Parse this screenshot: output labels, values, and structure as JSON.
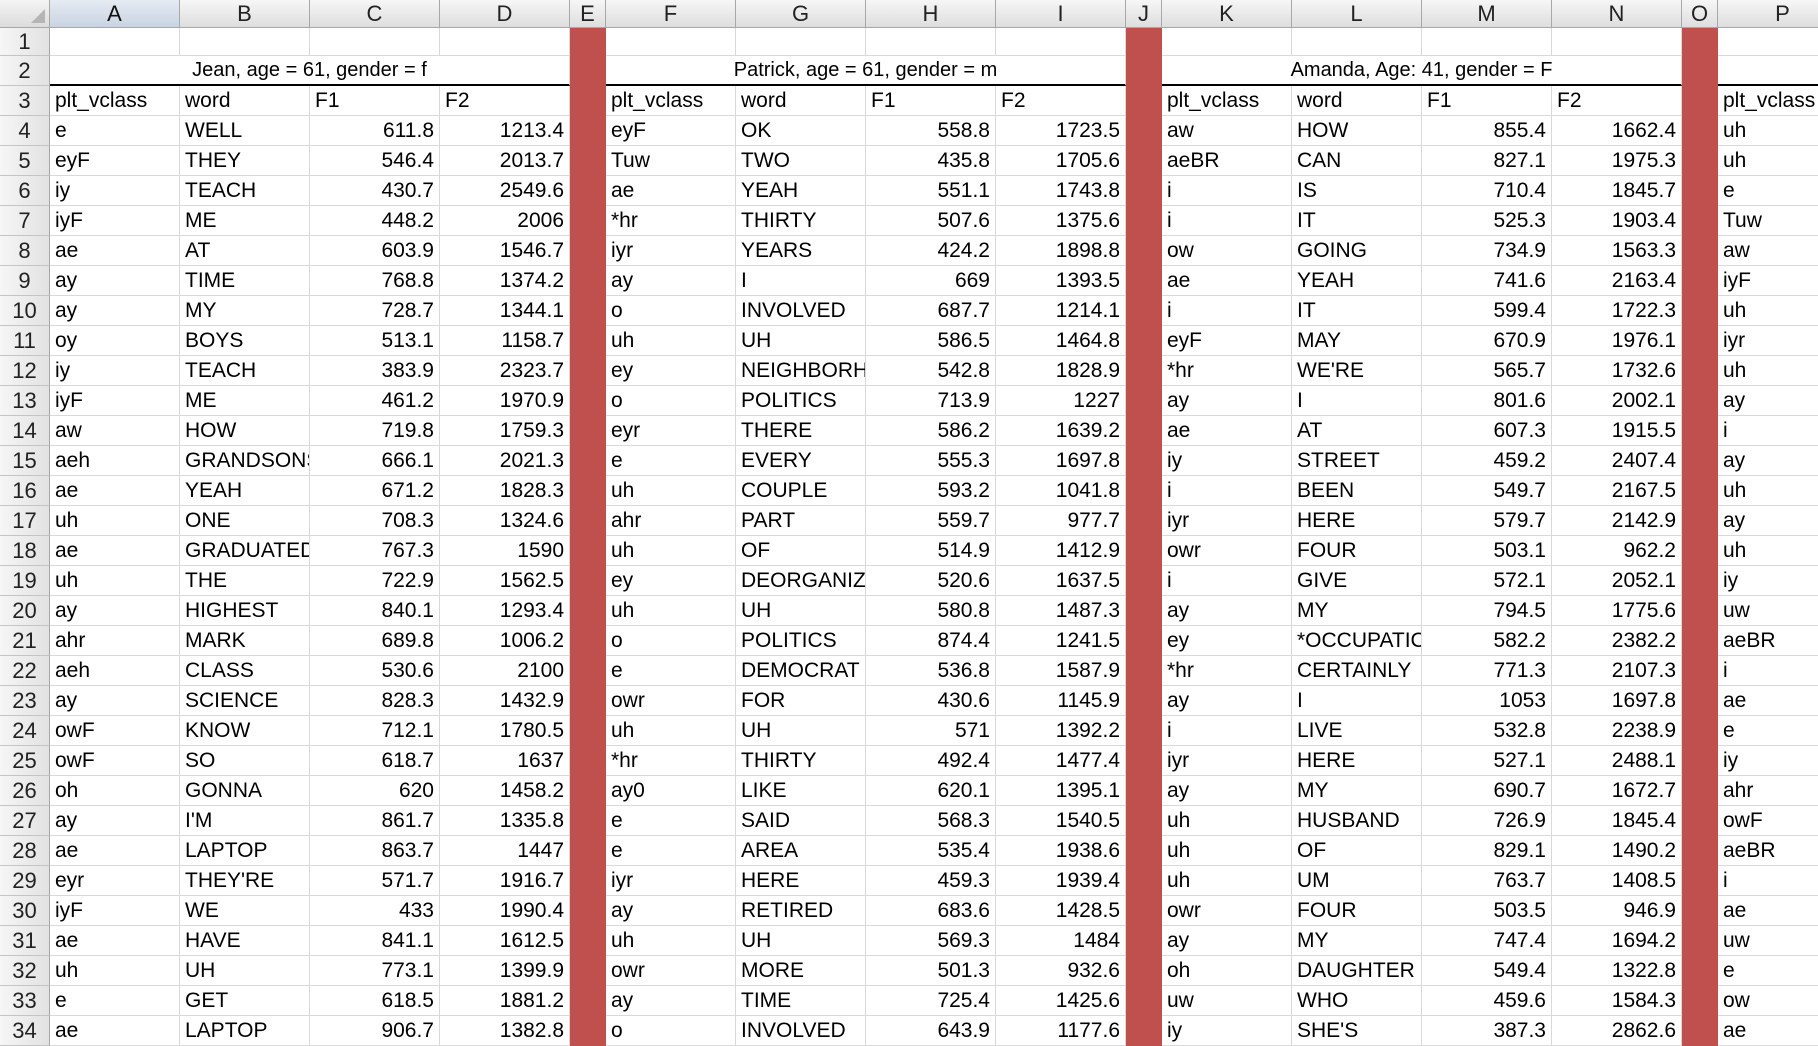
{
  "columns": [
    "A",
    "B",
    "C",
    "D",
    "E",
    "F",
    "G",
    "H",
    "I",
    "J",
    "K",
    "L",
    "M",
    "N",
    "O",
    "P"
  ],
  "selected_column": "A",
  "separator_columns": [
    "E",
    "J",
    "O"
  ],
  "separator_color": "#c0504d",
  "row_numbers": [
    "1",
    "2",
    "3",
    "4",
    "5",
    "6",
    "7",
    "8",
    "9",
    "10",
    "11",
    "12",
    "13",
    "14",
    "15",
    "16",
    "17",
    "18",
    "19",
    "20",
    "21",
    "22",
    "23",
    "24",
    "25",
    "26",
    "27",
    "28",
    "29",
    "30",
    "31",
    "32",
    "33",
    "34"
  ],
  "speaker_headers": [
    "Jean, age = 61, gender = f",
    "Patrick, age = 61, gender = m",
    "Amanda, Age: 41, gender = F"
  ],
  "field_headers": [
    "plt_vclass",
    "word",
    "F1",
    "F2"
  ],
  "speakers": [
    {
      "rows": [
        [
          "e",
          "WELL",
          "611.8",
          "1213.4"
        ],
        [
          "eyF",
          "THEY",
          "546.4",
          "2013.7"
        ],
        [
          "iy",
          "TEACH",
          "430.7",
          "2549.6"
        ],
        [
          "iyF",
          "ME",
          "448.2",
          "2006"
        ],
        [
          "ae",
          "AT",
          "603.9",
          "1546.7"
        ],
        [
          "ay",
          "TIME",
          "768.8",
          "1374.2"
        ],
        [
          "ay",
          "MY",
          "728.7",
          "1344.1"
        ],
        [
          "oy",
          "BOYS",
          "513.1",
          "1158.7"
        ],
        [
          "iy",
          "TEACH",
          "383.9",
          "2323.7"
        ],
        [
          "iyF",
          "ME",
          "461.2",
          "1970.9"
        ],
        [
          "aw",
          "HOW",
          "719.8",
          "1759.3"
        ],
        [
          "aeh",
          "GRANDSONS",
          "666.1",
          "2021.3"
        ],
        [
          "ae",
          "YEAH",
          "671.2",
          "1828.3"
        ],
        [
          "uh",
          "ONE",
          "708.3",
          "1324.6"
        ],
        [
          "ae",
          "GRADUATED",
          "767.3",
          "1590"
        ],
        [
          "uh",
          "THE",
          "722.9",
          "1562.5"
        ],
        [
          "ay",
          "HIGHEST",
          "840.1",
          "1293.4"
        ],
        [
          "ahr",
          "MARK",
          "689.8",
          "1006.2"
        ],
        [
          "aeh",
          "CLASS",
          "530.6",
          "2100"
        ],
        [
          "ay",
          "SCIENCE",
          "828.3",
          "1432.9"
        ],
        [
          "owF",
          "KNOW",
          "712.1",
          "1780.5"
        ],
        [
          "owF",
          "SO",
          "618.7",
          "1637"
        ],
        [
          "oh",
          "GONNA",
          "620",
          "1458.2"
        ],
        [
          "ay",
          "I'M",
          "861.7",
          "1335.8"
        ],
        [
          "ae",
          "LAPTOP",
          "863.7",
          "1447"
        ],
        [
          "eyr",
          "THEY'RE",
          "571.7",
          "1916.7"
        ],
        [
          "iyF",
          "WE",
          "433",
          "1990.4"
        ],
        [
          "ae",
          "HAVE",
          "841.1",
          "1612.5"
        ],
        [
          "uh",
          "UH",
          "773.1",
          "1399.9"
        ],
        [
          "e",
          "GET",
          "618.5",
          "1881.2"
        ],
        [
          "ae",
          "LAPTOP",
          "906.7",
          "1382.8"
        ]
      ]
    },
    {
      "rows": [
        [
          "eyF",
          "OK",
          "558.8",
          "1723.5"
        ],
        [
          "Tuw",
          "TWO",
          "435.8",
          "1705.6"
        ],
        [
          "ae",
          "YEAH",
          "551.1",
          "1743.8"
        ],
        [
          "*hr",
          "THIRTY",
          "507.6",
          "1375.6"
        ],
        [
          "iyr",
          "YEARS",
          "424.2",
          "1898.8"
        ],
        [
          "ay",
          "I",
          "669",
          "1393.5"
        ],
        [
          "o",
          "INVOLVED",
          "687.7",
          "1214.1"
        ],
        [
          "uh",
          "UH",
          "586.5",
          "1464.8"
        ],
        [
          "ey",
          "NEIGHBORH(",
          "542.8",
          "1828.9"
        ],
        [
          "o",
          "POLITICS",
          "713.9",
          "1227"
        ],
        [
          "eyr",
          "THERE",
          "586.2",
          "1639.2"
        ],
        [
          "e",
          "EVERY",
          "555.3",
          "1697.8"
        ],
        [
          "uh",
          "COUPLE",
          "593.2",
          "1041.8"
        ],
        [
          "ahr",
          "PART",
          "559.7",
          "977.7"
        ],
        [
          "uh",
          "OF",
          "514.9",
          "1412.9"
        ],
        [
          "ey",
          "DEORGANIZA",
          "520.6",
          "1637.5"
        ],
        [
          "uh",
          "UH",
          "580.8",
          "1487.3"
        ],
        [
          "o",
          "POLITICS",
          "874.4",
          "1241.5"
        ],
        [
          "e",
          "DEMOCRAT",
          "536.8",
          "1587.9"
        ],
        [
          "owr",
          "FOR",
          "430.6",
          "1145.9"
        ],
        [
          "uh",
          "UH",
          "571",
          "1392.2"
        ],
        [
          "*hr",
          "THIRTY",
          "492.4",
          "1477.4"
        ],
        [
          "ay0",
          "LIKE",
          "620.1",
          "1395.1"
        ],
        [
          "e",
          "SAID",
          "568.3",
          "1540.5"
        ],
        [
          "e",
          "AREA",
          "535.4",
          "1938.6"
        ],
        [
          "iyr",
          "HERE",
          "459.3",
          "1939.4"
        ],
        [
          "ay",
          "RETIRED",
          "683.6",
          "1428.5"
        ],
        [
          "uh",
          "UH",
          "569.3",
          "1484"
        ],
        [
          "owr",
          "MORE",
          "501.3",
          "932.6"
        ],
        [
          "ay",
          "TIME",
          "725.4",
          "1425.6"
        ],
        [
          "o",
          "INVOLVED",
          "643.9",
          "1177.6"
        ]
      ]
    },
    {
      "rows": [
        [
          "aw",
          "HOW",
          "855.4",
          "1662.4"
        ],
        [
          "aeBR",
          "CAN",
          "827.1",
          "1975.3"
        ],
        [
          "i",
          "IS",
          "710.4",
          "1845.7"
        ],
        [
          "i",
          "IT",
          "525.3",
          "1903.4"
        ],
        [
          "ow",
          "GOING",
          "734.9",
          "1563.3"
        ],
        [
          "ae",
          "YEAH",
          "741.6",
          "2163.4"
        ],
        [
          "i",
          "IT",
          "599.4",
          "1722.3"
        ],
        [
          "eyF",
          "MAY",
          "670.9",
          "1976.1"
        ],
        [
          "*hr",
          "WE'RE",
          "565.7",
          "1732.6"
        ],
        [
          "ay",
          "I",
          "801.6",
          "2002.1"
        ],
        [
          "ae",
          "AT",
          "607.3",
          "1915.5"
        ],
        [
          "iy",
          "STREET",
          "459.2",
          "2407.4"
        ],
        [
          "i",
          "BEEN",
          "549.7",
          "2167.5"
        ],
        [
          "iyr",
          "HERE",
          "579.7",
          "2142.9"
        ],
        [
          "owr",
          "FOUR",
          "503.1",
          "962.2"
        ],
        [
          "i",
          "GIVE",
          "572.1",
          "2052.1"
        ],
        [
          "ay",
          "MY",
          "794.5",
          "1775.6"
        ],
        [
          "ey",
          "*OCCUPATIC",
          "582.2",
          "2382.2"
        ],
        [
          "*hr",
          "CERTAINLY",
          "771.3",
          "2107.3"
        ],
        [
          "ay",
          "I",
          "1053",
          "1697.8"
        ],
        [
          "i",
          "LIVE",
          "532.8",
          "2238.9"
        ],
        [
          "iyr",
          "HERE",
          "527.1",
          "2488.1"
        ],
        [
          "ay",
          "MY",
          "690.7",
          "1672.7"
        ],
        [
          "uh",
          "HUSBAND",
          "726.9",
          "1845.4"
        ],
        [
          "uh",
          "OF",
          "829.1",
          "1490.2"
        ],
        [
          "uh",
          "UM",
          "763.7",
          "1408.5"
        ],
        [
          "owr",
          "FOUR",
          "503.5",
          "946.9"
        ],
        [
          "ay",
          "MY",
          "747.4",
          "1694.2"
        ],
        [
          "oh",
          "DAUGHTER",
          "549.4",
          "1322.8"
        ],
        [
          "uw",
          "WHO",
          "459.6",
          "1584.3"
        ],
        [
          "iy",
          "SHE'S",
          "387.3",
          "2862.6"
        ]
      ]
    }
  ],
  "column_p": {
    "header": "plt_vclass",
    "values": [
      "uh",
      "uh",
      "e",
      "Tuw",
      "aw",
      "iyF",
      "uh",
      "iyr",
      "uh",
      "ay",
      "i",
      "ay",
      "uh",
      "ay",
      "uh",
      "iy",
      "uw",
      "aeBR",
      "i",
      "ae",
      "e",
      "iy",
      "ahr",
      "owF",
      "aeBR",
      "i",
      "ae",
      "uw",
      "e",
      "ow",
      "ae"
    ]
  }
}
